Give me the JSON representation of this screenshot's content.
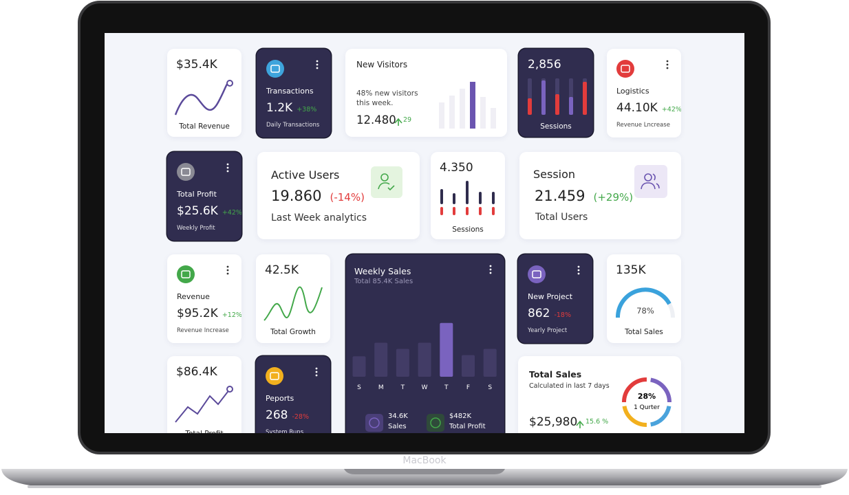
{
  "device": "MacBook",
  "cards": [
    {
      "value": "$35.4K",
      "label": "Total Revenue"
    },
    {
      "title": "Transactions",
      "value": "1.2K",
      "change": "+38%",
      "caption": "Daily Transactions"
    },
    {
      "title": "New Visitors",
      "text": "48% new visitors this week.",
      "value": "12.480",
      "change": "29"
    },
    {
      "value": "2,856",
      "label": "Sessions"
    },
    {
      "title": "Logistics",
      "value": "44.10K",
      "change": "+42%",
      "caption": "Revenue Lncrease"
    },
    {
      "title": "Total Profit",
      "value": "$25.6K",
      "change": "+42%",
      "caption": "Weekly Profit"
    },
    {
      "title": "Active Users",
      "value": "19.860",
      "change": "(-14%)",
      "caption": "Last Week analytics"
    },
    {
      "value": "4.350",
      "label": "Sessions"
    },
    {
      "title": "Session",
      "value": "21.459",
      "change": "(+29%)",
      "caption": "Total Users"
    },
    {
      "title": "Revenue",
      "value": "$95.2K",
      "change": "+12%",
      "caption": "Revenue Increase"
    },
    {
      "value": "42.5K",
      "label": "Total Growth"
    },
    {
      "title": "Weekly Sales",
      "subtitle": "Total 85.4K Sales",
      "chart": {
        "type": "bar",
        "categories": [
          "S",
          "M",
          "T",
          "W",
          "T",
          "F",
          "S"
        ],
        "values": [
          33,
          55,
          45,
          55,
          87,
          35,
          45
        ],
        "ylim": [
          0,
          100
        ],
        "color": "#423c66",
        "highlight": 4,
        "highlight_color": "#7a63bf"
      },
      "stats": [
        {
          "value": "34.6K",
          "label": "Sales"
        },
        {
          "value": "$482K",
          "label": "Total Profit"
        }
      ]
    },
    {
      "title": "New Project",
      "value": "862",
      "change": "-18%",
      "caption": "Yearly Project"
    },
    {
      "value": "135K",
      "percent": "78%",
      "label": "Total Sales"
    },
    {
      "value": "$86.4K",
      "label": "Total Profit"
    },
    {
      "title": "Peports",
      "value": "268",
      "change": "-28%",
      "caption": "System Runs"
    },
    {
      "title": "Total Sales",
      "subtitle": "Calculated in last 7 days",
      "value": "$25,980",
      "change": "15.6 %",
      "donut_value": "28%",
      "donut_label": "1 Qurter"
    }
  ]
}
